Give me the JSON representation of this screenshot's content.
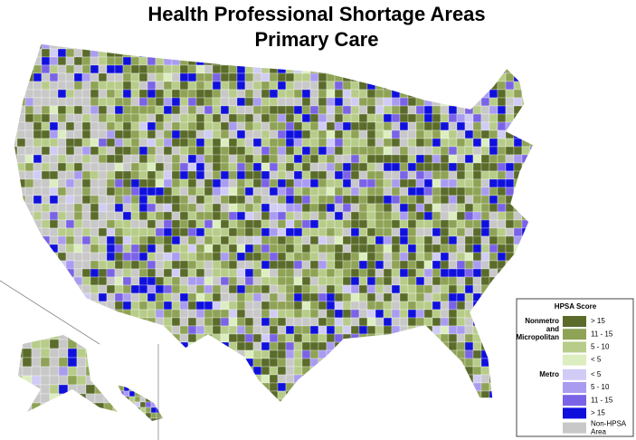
{
  "header": {
    "title_lines": [
      "Health Professional Shortage Areas",
      "Primary Care"
    ]
  },
  "legend": {
    "title": "HPSA Score",
    "groups": [
      {
        "label_lines": [
          "Nonmetro",
          "and",
          "Micropolitan"
        ],
        "items": [
          {
            "label": "> 15",
            "color": "#5a6b2a"
          },
          {
            "label": "11 - 15",
            "color": "#8fa356"
          },
          {
            "label": "5 - 10",
            "color": "#b8cc8a"
          },
          {
            "label": "< 5",
            "color": "#dcedc0"
          }
        ]
      },
      {
        "label_lines": [
          "Metro"
        ],
        "items": [
          {
            "label": "< 5",
            "color": "#d0ccf5"
          },
          {
            "label": "5 - 10",
            "color": "#a99cf0"
          },
          {
            "label": "11 - 15",
            "color": "#7a63e6"
          },
          {
            "label": "> 15",
            "color": "#1010dd"
          }
        ]
      },
      {
        "label_lines": [],
        "items": [
          {
            "label_lines": [
              "Non-HPSA",
              "Area"
            ],
            "color": "#c8c8c8"
          }
        ]
      }
    ]
  }
}
